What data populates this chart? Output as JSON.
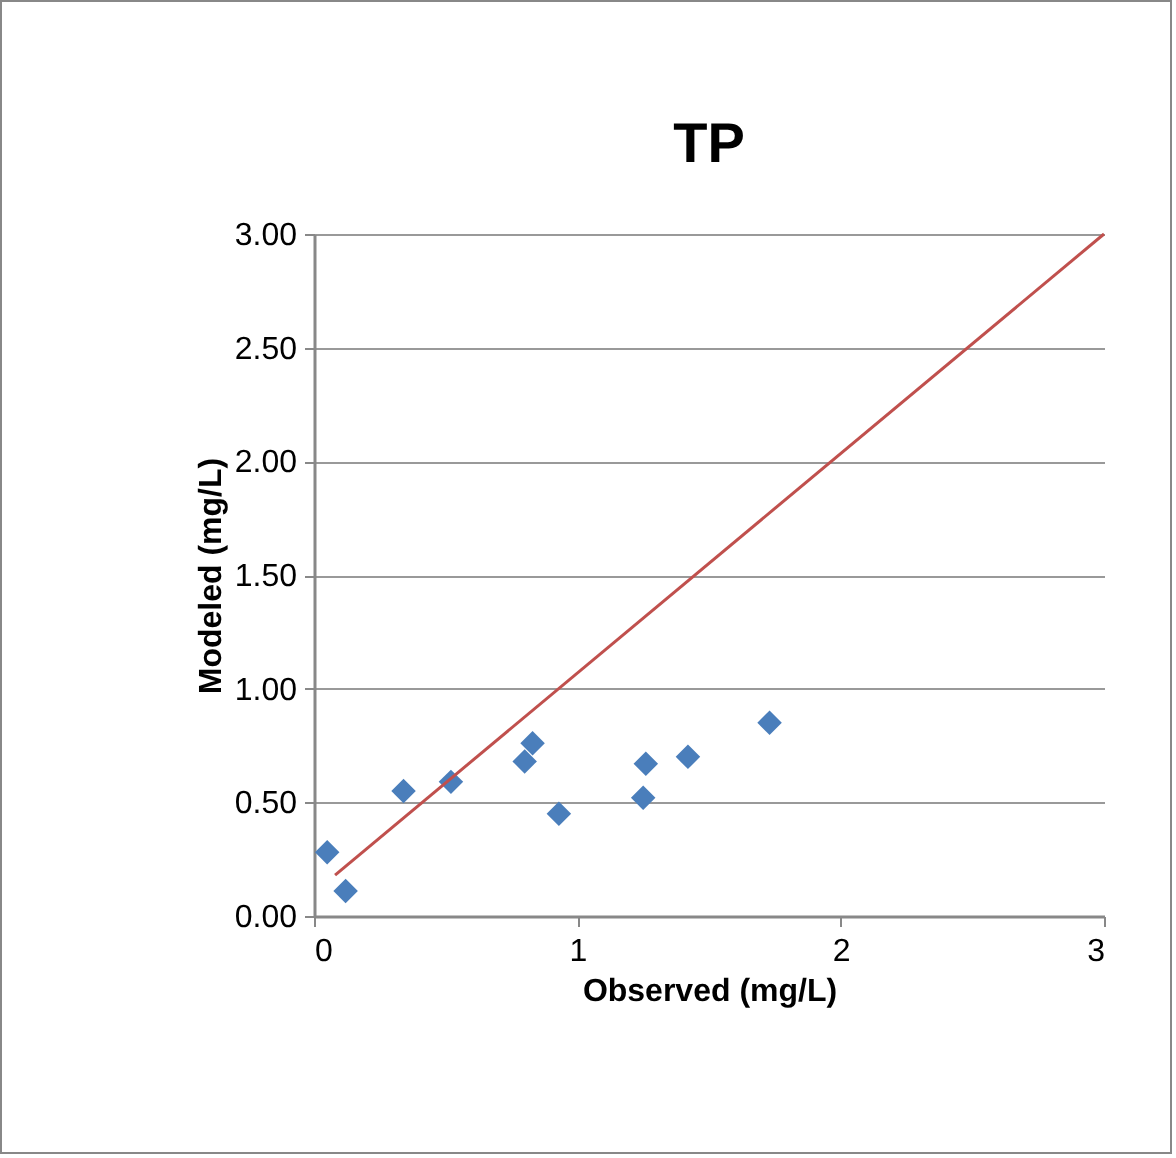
{
  "chart_data": {
    "type": "scatter",
    "title": "TP",
    "xlabel": "Observed (mg/L)",
    "ylabel": "Modeled (mg/L)",
    "xlim": [
      0,
      3
    ],
    "xticks": [
      0,
      1,
      2,
      3
    ],
    "ylim": [
      0,
      3
    ],
    "yticks": [
      {
        "value": 0,
        "label": "0.00"
      },
      {
        "value": 0.5,
        "label": "0.50"
      },
      {
        "value": 1,
        "label": "1.00"
      },
      {
        "value": 1.5,
        "label": "1.50"
      },
      {
        "value": 2,
        "label": "2.00"
      },
      {
        "value": 2.5,
        "label": "2.50"
      },
      {
        "value": 3,
        "label": "3.00"
      }
    ],
    "grid": "y",
    "series": [
      {
        "marker": "diamond",
        "color": "#4a7ebb",
        "x": [
          0.05,
          0.12,
          0.34,
          0.52,
          0.8,
          0.83,
          0.93,
          1.26,
          1.25,
          1.42,
          1.73
        ],
        "values": [
          0.28,
          0.11,
          0.55,
          0.59,
          0.68,
          0.76,
          0.45,
          0.67,
          0.52,
          0.7,
          0.85
        ]
      },
      {
        "type": "line",
        "color": "#c0504d",
        "line_style": "solid",
        "x": [
          0.08,
          3
        ],
        "values": [
          0.18,
          3
        ]
      }
    ]
  }
}
